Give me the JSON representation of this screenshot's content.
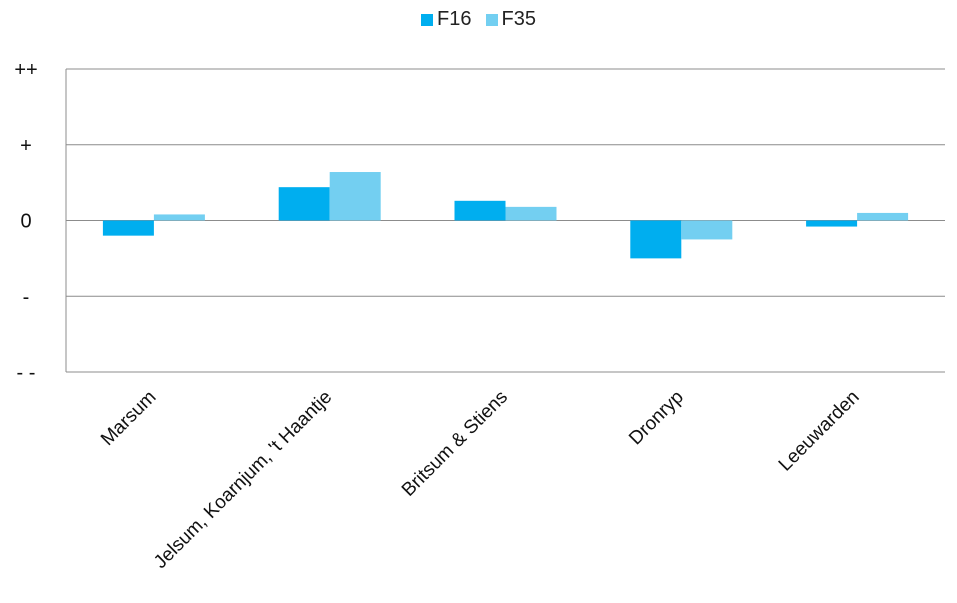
{
  "chart_data": {
    "type": "bar",
    "categories": [
      "Marsum",
      "Jelsum, Koarnjum, 't Haantje",
      "Britsum & Stiens",
      "Dronryp",
      "Leeuwarden"
    ],
    "series": [
      {
        "name": "F16",
        "color": "#00AEEF",
        "values": [
          -0.2,
          0.44,
          0.26,
          -0.5,
          -0.08
        ]
      },
      {
        "name": "F35",
        "color": "#73CFF1",
        "values": [
          0.08,
          0.64,
          0.18,
          -0.25,
          0.1
        ]
      }
    ],
    "y_ticks": [
      {
        "value": 2,
        "label": "++"
      },
      {
        "value": 1,
        "label": "+"
      },
      {
        "value": 0,
        "label": "0"
      },
      {
        "value": -1,
        "label": "-"
      },
      {
        "value": -2,
        "label": "- -"
      }
    ],
    "ylim": [
      -2,
      2
    ],
    "legend_position": "top-center",
    "grid": true
  }
}
